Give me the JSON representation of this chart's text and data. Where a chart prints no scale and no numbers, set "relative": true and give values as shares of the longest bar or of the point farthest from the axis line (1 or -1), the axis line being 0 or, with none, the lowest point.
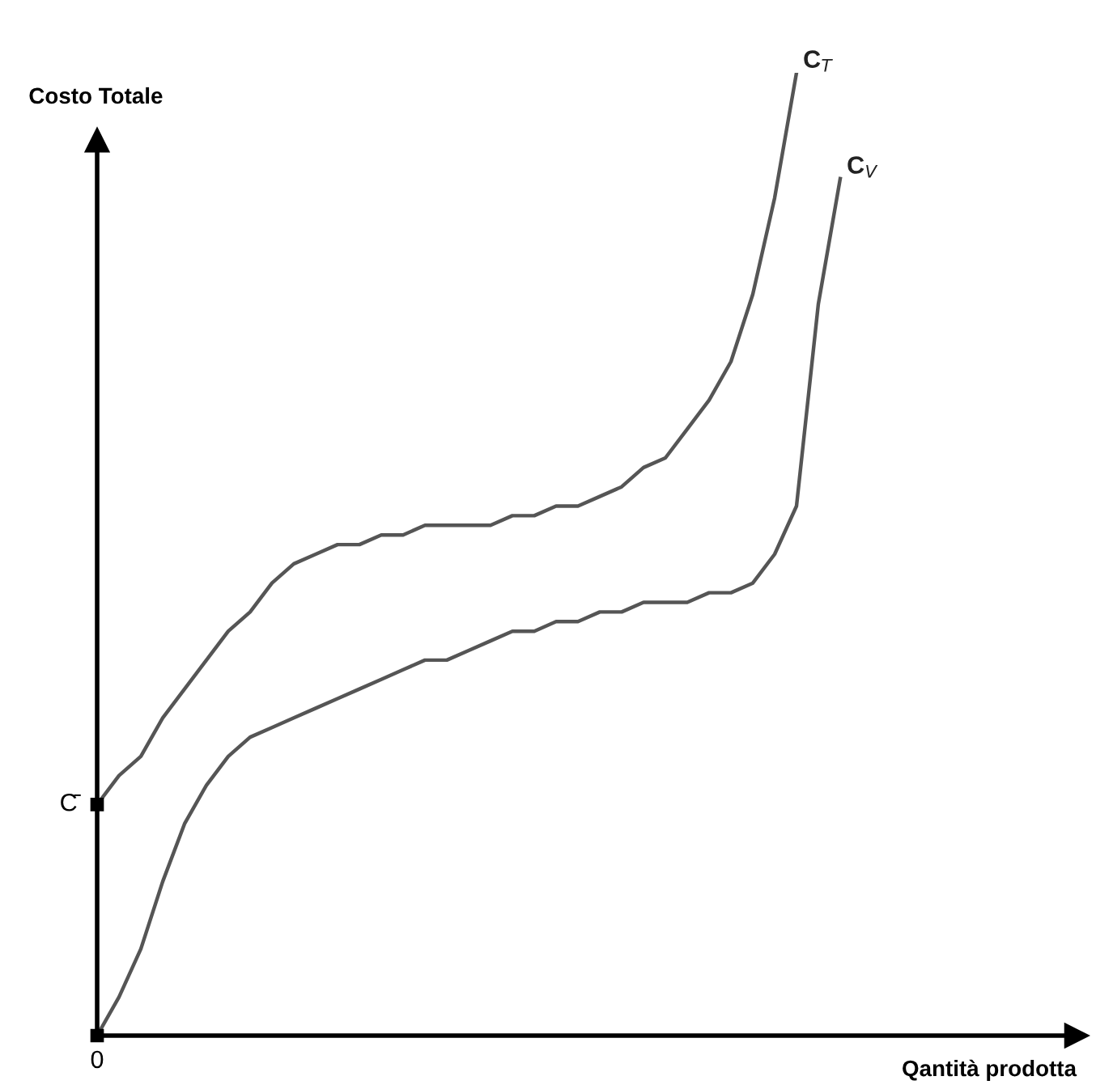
{
  "chart_data": {
    "type": "line",
    "relative": true,
    "ylabel": "Costo Totale",
    "xlabel": "Qantità prodotta",
    "categories": [
      null,
      null,
      null,
      null,
      null,
      null,
      null,
      null,
      null,
      null,
      null,
      null,
      null,
      null,
      null,
      null,
      null,
      null,
      null,
      null,
      null,
      null,
      null,
      null,
      null,
      null,
      null,
      null,
      null,
      null,
      null,
      null,
      null,
      null,
      null
    ],
    "series": [
      {
        "name": "C$_{T}$",
        "color": "#555555",
        "values": [
          0.24,
          0.27,
          0.29,
          0.33,
          0.36,
          0.39,
          0.42,
          0.44,
          0.47,
          0.49,
          0.5,
          0.51,
          0.51,
          0.52,
          0.52,
          0.53,
          0.53,
          0.53,
          0.53,
          0.54,
          0.54,
          0.55,
          0.55,
          0.56,
          0.57,
          0.59,
          0.6,
          0.63,
          0.66,
          0.7,
          0.77,
          0.87,
          1,
          null,
          null
        ]
      },
      {
        "name": "C$_{V}$",
        "color": "#555555",
        "values": [
          0,
          0.04,
          0.09,
          0.16,
          0.22,
          0.26,
          0.29,
          0.31,
          0.32,
          0.33,
          0.34,
          0.35,
          0.36,
          0.37,
          0.38,
          0.39,
          0.39,
          0.4,
          0.41,
          0.42,
          0.42,
          0.43,
          0.43,
          0.44,
          0.44,
          0.45,
          0.45,
          0.45,
          0.46,
          0.46,
          0.47,
          0.5,
          0.55,
          0.76,
          0.89
        ]
      }
    ],
    "annotations": [
      "C̄",
      "0"
    ],
    "legend": false,
    "line_style": "solid",
    "marker": "none"
  }
}
